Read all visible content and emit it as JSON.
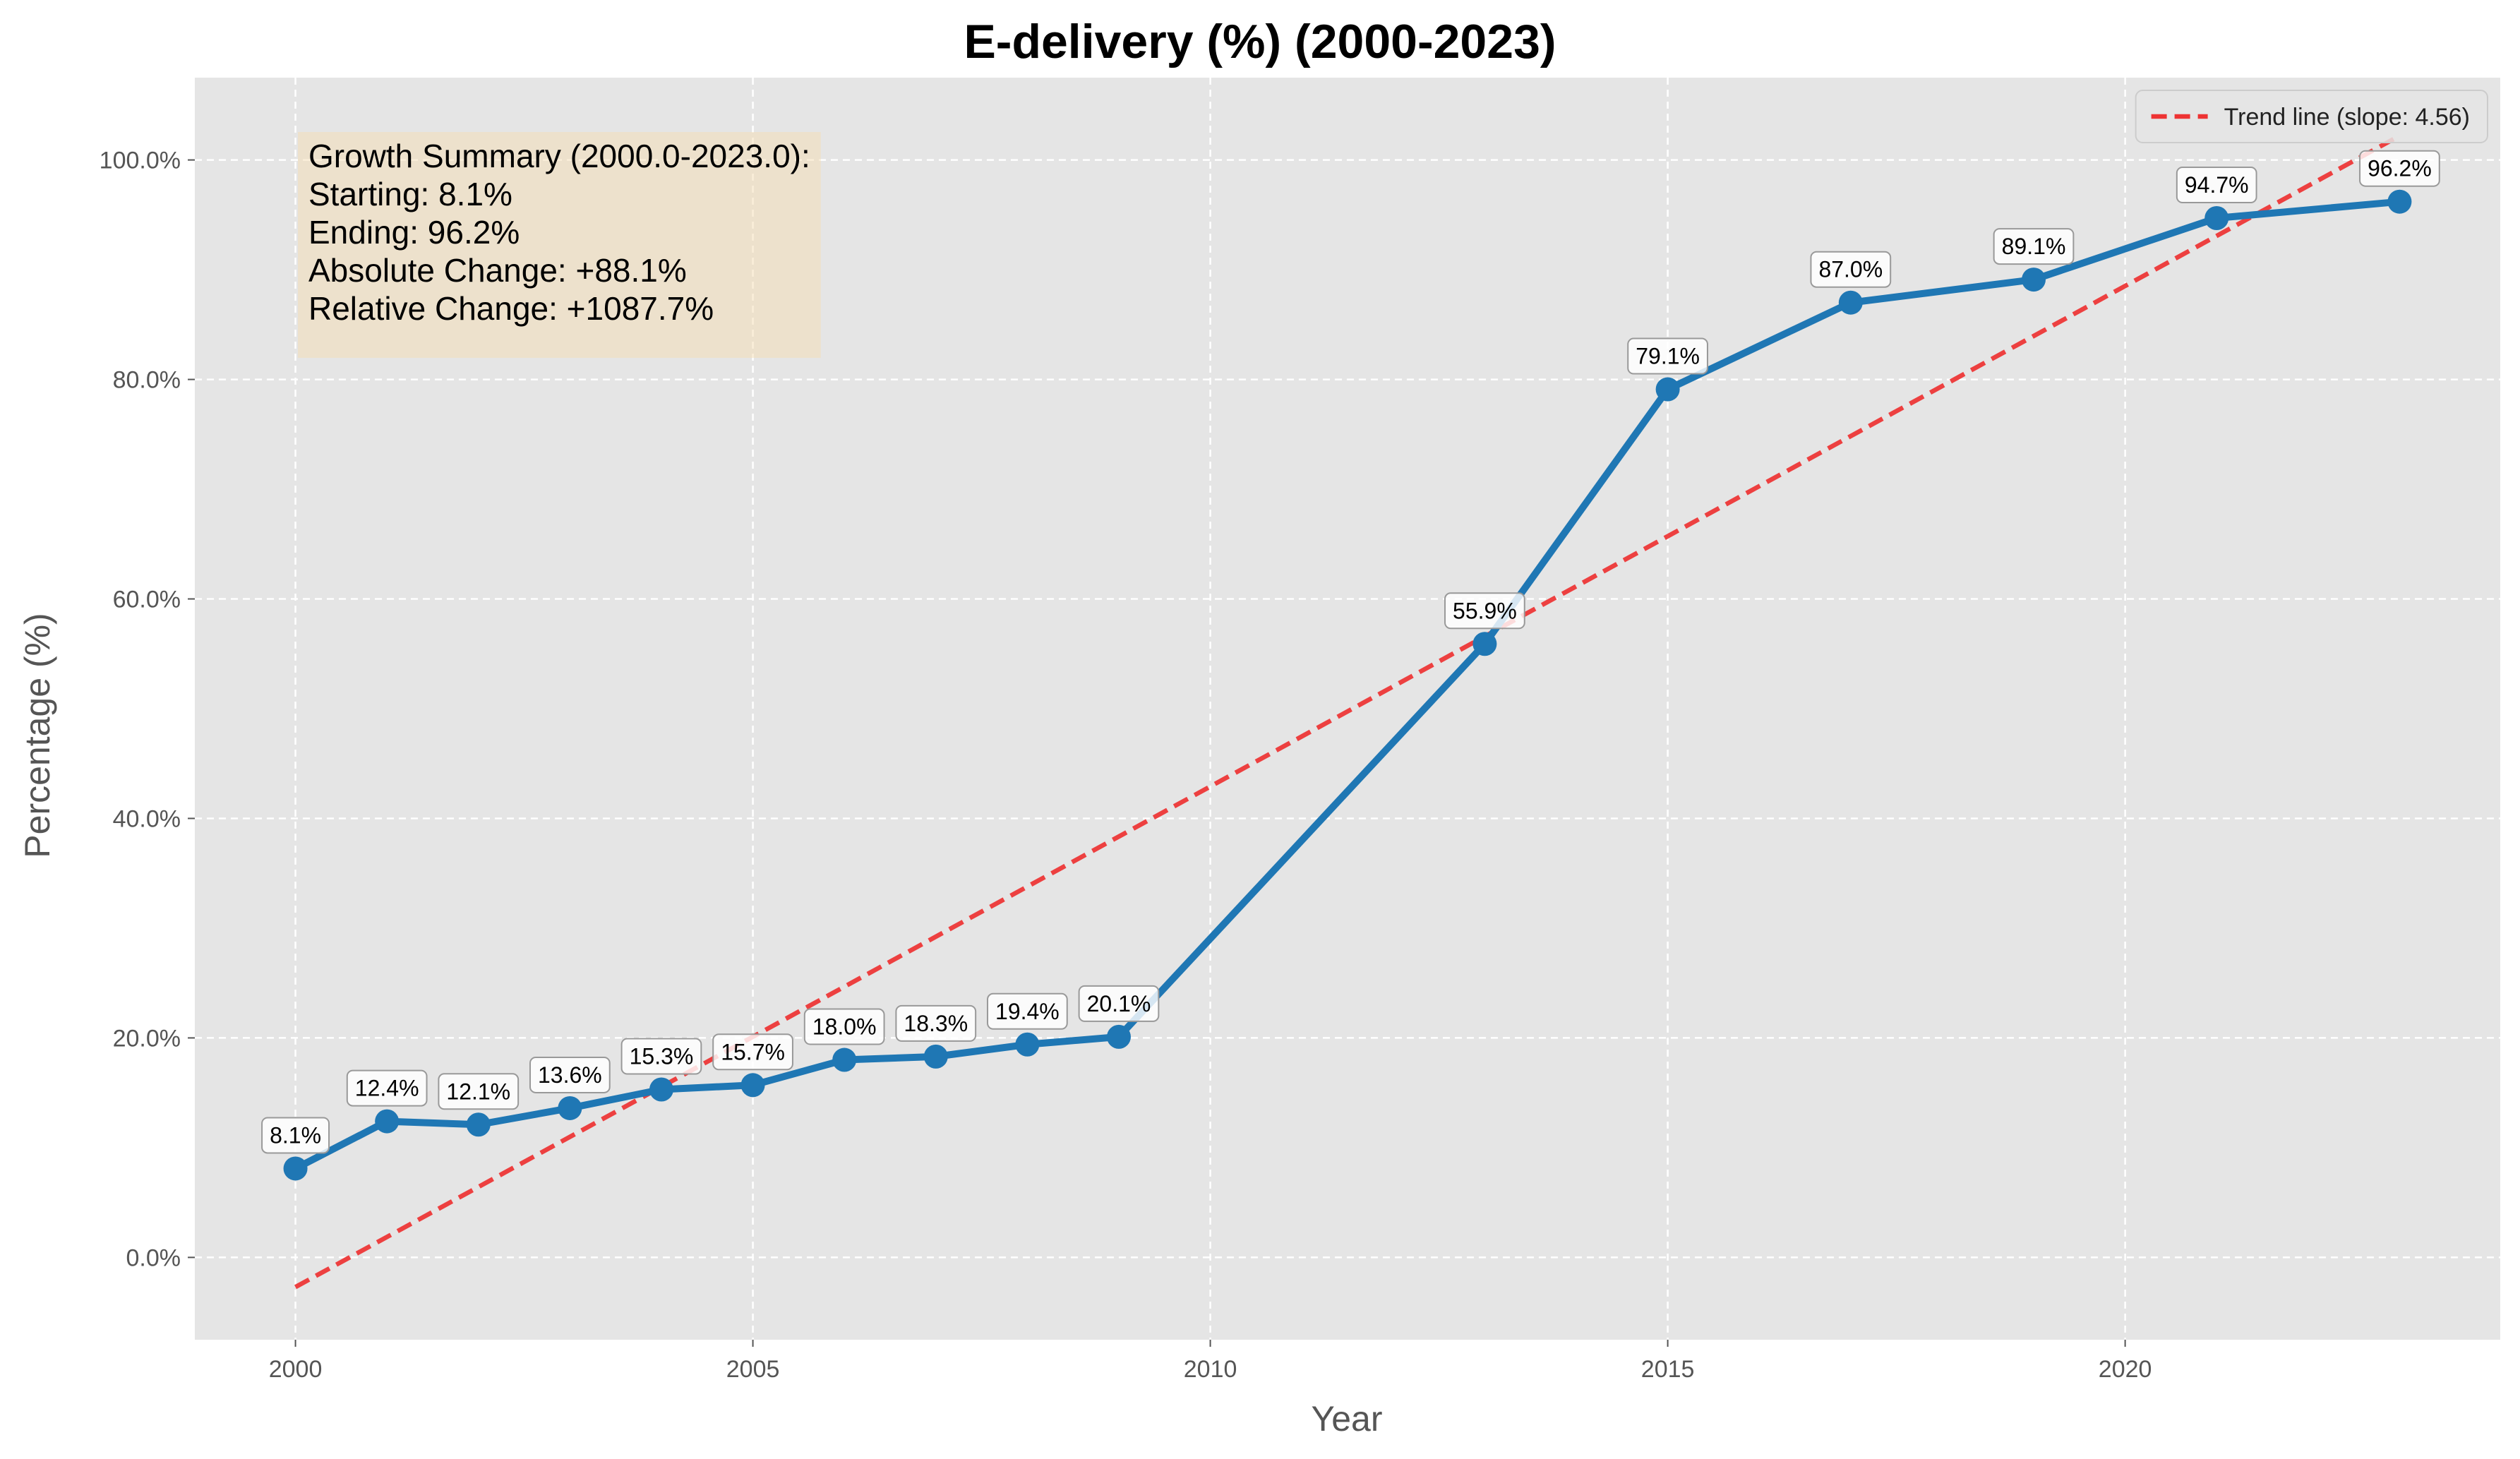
{
  "chart_data": {
    "type": "line",
    "title": "E-delivery (%) (2000-2023)",
    "xlabel": "Year",
    "ylabel": "Percentage (%)",
    "xlim": [
      1998.9,
      2024.1
    ],
    "ylim": [
      -7.5,
      107.5
    ],
    "x_ticks": [
      2000,
      2005,
      2010,
      2015,
      2020
    ],
    "x_tick_labels": [
      "2000",
      "2005",
      "2010",
      "2015",
      "2020"
    ],
    "y_ticks": [
      0,
      20,
      40,
      60,
      80,
      100
    ],
    "y_tick_labels": [
      "0.0%",
      "20.0%",
      "40.0%",
      "60.0%",
      "80.0%",
      "100.0%"
    ],
    "grid": true,
    "legend_position": "top-right",
    "series": [
      {
        "type": "line",
        "color": "#1f77b4",
        "x": [
          2000,
          2001,
          2002,
          2003,
          2004,
          2005,
          2006,
          2007,
          2008,
          2009,
          2013,
          2015,
          2017,
          2019,
          2021,
          2023
        ],
        "y": [
          8.1,
          12.4,
          12.1,
          13.6,
          15.3,
          15.7,
          18.0,
          18.3,
          19.4,
          20.1,
          55.9,
          79.1,
          87.0,
          89.1,
          94.7,
          96.2
        ],
        "labels": [
          "8.1%",
          "12.4%",
          "12.1%",
          "13.6%",
          "15.3%",
          "15.7%",
          "18.0%",
          "18.3%",
          "19.4%",
          "20.1%",
          "55.9%",
          "79.1%",
          "87.0%",
          "89.1%",
          "94.7%",
          "96.2%"
        ]
      },
      {
        "name": "Trend line (slope: 4.56)",
        "type": "trend",
        "color": "#ee3333",
        "dashed": true,
        "x": [
          2000,
          2023
        ],
        "y": [
          -2.7,
          102.2
        ]
      }
    ],
    "annotation": {
      "lines": [
        "Growth Summary (2000.0-2023.0):",
        "Starting: 8.1%",
        "Ending: 96.2%",
        "Absolute Change: +88.1%",
        "Relative Change: +1087.7%"
      ],
      "position": "top-left",
      "background": "#f5deb3"
    },
    "background": "#e5e5e5"
  }
}
